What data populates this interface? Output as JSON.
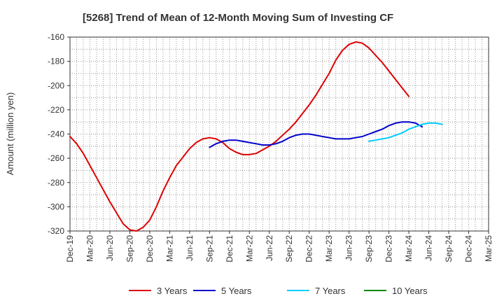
{
  "chart_data": {
    "type": "line",
    "title": "[5268]  Trend of Mean of 12-Month Moving Sum of Investing CF",
    "xlabel": "",
    "ylabel": "Amount (million yen)",
    "ylim": [
      -320,
      -160
    ],
    "yticks": [
      -160,
      -180,
      -200,
      -220,
      -240,
      -260,
      -280,
      -300,
      -320
    ],
    "x_ticks": [
      "Dec-19",
      "Mar-20",
      "Jun-20",
      "Sep-20",
      "Dec-20",
      "Mar-21",
      "Jun-21",
      "Sep-21",
      "Dec-21",
      "Mar-22",
      "Jun-22",
      "Sep-22",
      "Dec-22",
      "Mar-23",
      "Jun-23",
      "Sep-23",
      "Dec-23",
      "Mar-24",
      "Jun-24",
      "Sep-24",
      "Dec-24",
      "Mar-25"
    ],
    "grid": true,
    "legend_position": "bottom",
    "series": [
      {
        "name": "3 Years",
        "color": "#dd0000",
        "start_index": 0,
        "values": [
          -242,
          -248,
          -256,
          -266,
          -276,
          -286,
          -296,
          -305,
          -314,
          -319,
          -320,
          -317,
          -311,
          -300,
          -287,
          -276,
          -266,
          -259,
          -252,
          -247,
          -244,
          -243,
          -244,
          -247,
          -252,
          -255,
          -257,
          -257,
          -256,
          -253,
          -250,
          -246,
          -241,
          -236,
          -230,
          -223,
          -216,
          -208,
          -199,
          -190,
          -179,
          -171,
          -166,
          -164,
          -165,
          -169,
          -175,
          -181,
          -188,
          -195,
          -202,
          -209
        ]
      },
      {
        "name": "5 Years",
        "color": "#0000cc",
        "start_index": 21,
        "values": [
          -251,
          -248,
          -246,
          -245,
          -245,
          -246,
          -247,
          -248,
          -249,
          -249,
          -248,
          -246,
          -243,
          -241,
          -240,
          -240,
          -241,
          -242,
          -243,
          -244,
          -244,
          -244,
          -243,
          -242,
          -240,
          -238,
          -236,
          -233,
          -231,
          -230,
          -230,
          -231,
          -234
        ]
      },
      {
        "name": "7 Years",
        "color": "#00ccff",
        "start_index": 45,
        "values": [
          -246,
          -245,
          -244,
          -243,
          -241,
          -239,
          -236,
          -234,
          -232,
          -231,
          -231,
          -232
        ]
      },
      {
        "name": "10 Years",
        "color": "#008800",
        "start_index": 0,
        "values": []
      }
    ]
  }
}
